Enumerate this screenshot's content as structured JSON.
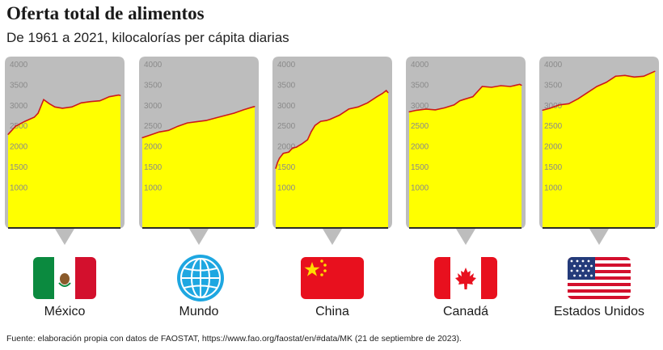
{
  "header": {
    "title": "Oferta total de alimentos",
    "subtitle": "De 1961 a 2021, kilocalorías per cápita diarias"
  },
  "source": "Fuente: elaboración propia con datos de FAOSTAT, https://www.fao.org/faostat/en/#data/MK (21 de septiembre de 2023).",
  "style": {
    "fill_color": "#ffff00",
    "line_color": "#cc1a1a",
    "panel_bg": "#bdbdbd",
    "icons": [
      "flag-mexico",
      "globe-icon",
      "flag-china",
      "flag-canada",
      "flag-usa"
    ]
  },
  "chart_data": [
    {
      "type": "area",
      "name": "México",
      "x": [
        1961,
        1965,
        1970,
        1975,
        1977,
        1980,
        1983,
        1986,
        1990,
        1995,
        2000,
        2005,
        2010,
        2015,
        2020,
        2021
      ],
      "y": [
        2280,
        2480,
        2600,
        2700,
        2800,
        3130,
        3030,
        2950,
        2920,
        2950,
        3050,
        3080,
        3100,
        3200,
        3240,
        3230
      ],
      "ylim": [
        0,
        4100
      ],
      "ticks": [
        1000,
        1500,
        2000,
        2500,
        3000,
        3500,
        4000
      ],
      "grid": false
    },
    {
      "type": "area",
      "name": "Mundo",
      "x": [
        1961,
        1965,
        1970,
        1975,
        1980,
        1985,
        1990,
        1995,
        2000,
        2005,
        2010,
        2015,
        2020,
        2021
      ],
      "y": [
        2200,
        2260,
        2340,
        2380,
        2480,
        2560,
        2590,
        2620,
        2680,
        2740,
        2800,
        2880,
        2950,
        2960
      ],
      "ylim": [
        0,
        4100
      ],
      "ticks": [
        1000,
        1500,
        2000,
        2500,
        3000,
        3500,
        4000
      ],
      "grid": false
    },
    {
      "type": "area",
      "name": "China",
      "x": [
        1961,
        1962,
        1963,
        1965,
        1968,
        1970,
        1972,
        1975,
        1978,
        1980,
        1982,
        1985,
        1988,
        1990,
        1995,
        2000,
        2005,
        2010,
        2015,
        2018,
        2020,
        2021
      ],
      "y": [
        1450,
        1600,
        1700,
        1820,
        1850,
        1950,
        1970,
        2050,
        2150,
        2350,
        2500,
        2600,
        2620,
        2650,
        2750,
        2900,
        2950,
        3050,
        3200,
        3280,
        3350,
        3300
      ],
      "ylim": [
        0,
        4100
      ],
      "ticks": [
        1000,
        1500,
        2000,
        2500,
        3000,
        3500,
        4000
      ],
      "grid": false
    },
    {
      "type": "area",
      "name": "Canadá",
      "x": [
        1961,
        1965,
        1970,
        1975,
        1980,
        1985,
        1988,
        1990,
        1995,
        2000,
        2005,
        2010,
        2015,
        2020,
        2021
      ],
      "y": [
        2830,
        2870,
        2900,
        2880,
        2930,
        3000,
        3100,
        3130,
        3200,
        3450,
        3430,
        3470,
        3450,
        3500,
        3480
      ],
      "ylim": [
        0,
        4100
      ],
      "ticks": [
        1000,
        1500,
        2000,
        2500,
        3000,
        3500,
        4000
      ],
      "grid": false
    },
    {
      "type": "area",
      "name": "Estados Unidos",
      "x": [
        1961,
        1965,
        1970,
        1975,
        1980,
        1985,
        1990,
        1995,
        2000,
        2005,
        2010,
        2015,
        2020,
        2021
      ],
      "y": [
        2870,
        2920,
        3000,
        3030,
        3150,
        3300,
        3450,
        3550,
        3700,
        3720,
        3680,
        3700,
        3800,
        3820
      ],
      "ylim": [
        0,
        4100
      ],
      "ticks": [
        1000,
        1500,
        2000,
        2500,
        3000,
        3500,
        4000
      ],
      "grid": false
    }
  ]
}
